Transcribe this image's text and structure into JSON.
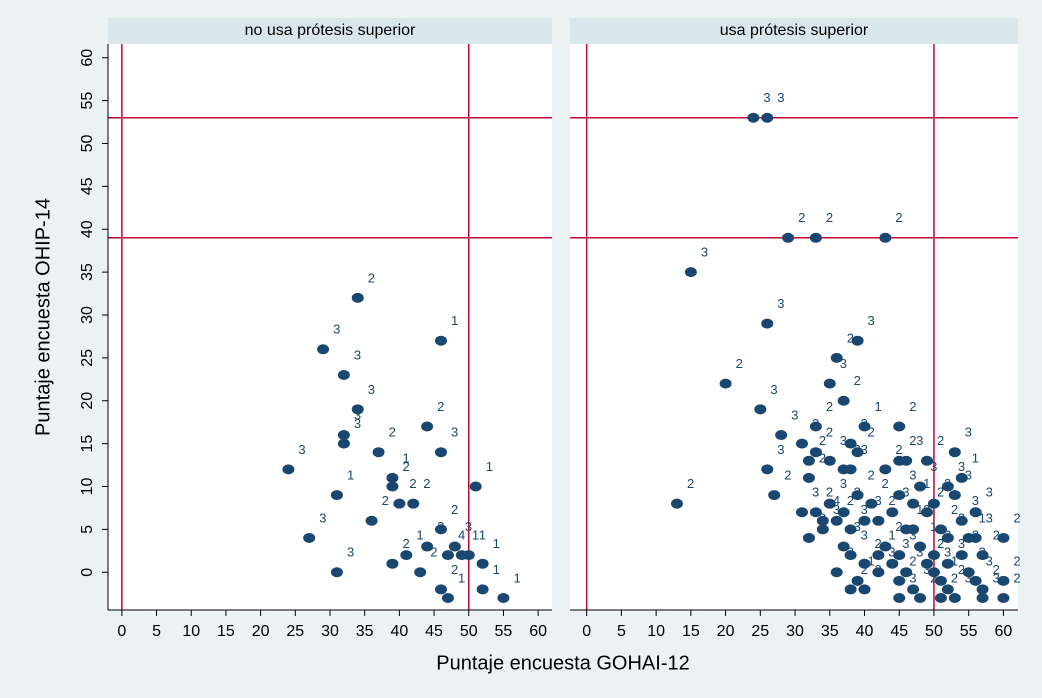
{
  "chart_data": [
    {
      "type": "scatter",
      "title": "no usa prótesis superior",
      "xlabel": "Puntaje encuesta GOHAI-12",
      "ylabel": "Puntaje encuesta OHIP-14",
      "color": "#1a476f",
      "ref_color": "#c10534",
      "xlim": [
        -2,
        62
      ],
      "ylim": [
        -4.4,
        61.6
      ],
      "xticks": [
        0,
        5,
        10,
        15,
        20,
        25,
        30,
        35,
        40,
        45,
        50,
        55,
        60
      ],
      "yticks": [
        0,
        5,
        10,
        15,
        20,
        25,
        30,
        35,
        40,
        45,
        50,
        55,
        60
      ],
      "hlines": [
        53,
        39
      ],
      "vlines": [
        0,
        50
      ],
      "x": [
        34,
        29,
        46,
        32,
        34,
        32,
        32,
        44,
        46,
        37,
        24,
        39,
        39,
        31,
        51,
        40,
        42,
        36,
        46,
        27,
        48,
        44,
        41,
        39,
        47,
        49,
        50,
        52,
        43,
        31,
        46,
        47,
        52,
        55
      ],
      "y": [
        32,
        26,
        27,
        23,
        19,
        16,
        15,
        17,
        14,
        14,
        12,
        11,
        10,
        9,
        10,
        8,
        8,
        6,
        5,
        4,
        3,
        3,
        2,
        1,
        2,
        2,
        2,
        1,
        0,
        0,
        -2,
        -3,
        -2,
        -3
      ],
      "marker_labels": [
        "2",
        "3",
        "1",
        "3",
        "3",
        "3",
        "3",
        "2",
        "3",
        "2",
        "3",
        "1",
        "2",
        "1",
        "1",
        "2",
        "2",
        "2",
        "2",
        "3",
        "3",
        "2",
        "1",
        "2",
        "4",
        "1",
        "1",
        "1",
        "2",
        "3",
        "2",
        "1",
        "1",
        "1"
      ]
    },
    {
      "type": "scatter",
      "title": "usa prótesis superior",
      "color": "#1a476f",
      "ref_color": "#c10534",
      "xlim": [
        -2.4,
        62.1
      ],
      "ylim": [
        -4.4,
        61.6
      ],
      "xticks": [
        0,
        5,
        10,
        15,
        20,
        25,
        30,
        35,
        40,
        45,
        50,
        55,
        60
      ],
      "hlines": [
        53,
        39
      ],
      "vlines": [
        0,
        50
      ],
      "x": [
        24,
        26,
        29,
        33,
        43,
        15,
        26,
        39,
        36,
        20,
        35,
        37,
        25,
        40,
        45,
        28,
        33,
        31,
        33,
        35,
        38,
        39,
        26,
        32,
        37,
        38,
        43,
        45,
        46,
        49,
        53,
        32,
        54,
        52,
        27,
        45,
        48,
        13,
        35,
        39,
        41,
        47,
        50,
        53,
        31,
        33,
        37,
        44,
        49,
        54,
        56,
        34,
        36,
        40,
        42,
        46,
        34,
        38,
        47,
        51,
        55,
        56,
        60,
        32,
        37,
        43,
        48,
        52,
        38,
        42,
        45,
        50,
        54,
        57,
        40,
        44,
        49,
        52,
        36,
        42,
        46,
        50,
        55,
        39,
        45,
        51,
        56,
        38,
        40,
        47,
        52,
        57,
        60,
        45,
        48,
        51,
        53,
        57,
        60
      ],
      "y": [
        53,
        53,
        39,
        39,
        39,
        35,
        29,
        27,
        25,
        22,
        22,
        20,
        19,
        17,
        17,
        16,
        17,
        15,
        14,
        13,
        15,
        14,
        12,
        13,
        12,
        12,
        12,
        13,
        13,
        13,
        14,
        11,
        11,
        10,
        9,
        9,
        10,
        8,
        8,
        9,
        8,
        8,
        8,
        9,
        7,
        7,
        7,
        7,
        7,
        6,
        7,
        6,
        6,
        6,
        6,
        5,
        5,
        5,
        5,
        5,
        4,
        4,
        4,
        4,
        3,
        3,
        3,
        4,
        2,
        2,
        2,
        2,
        2,
        2,
        1,
        1,
        1,
        1,
        0,
        0,
        0,
        0,
        0,
        -1,
        -1,
        -1,
        -1,
        -2,
        -2,
        -2,
        -2,
        -2,
        -1,
        -3,
        -3,
        -3,
        -3,
        -3,
        -3
      ],
      "marker_labels": [
        "3",
        "3",
        "2",
        "2",
        "2",
        "3",
        "3",
        "3",
        "2",
        "2",
        "3",
        "2",
        "3",
        "1",
        "2",
        "3",
        "2",
        "3",
        "2",
        "3",
        "3",
        "2",
        "3",
        "2",
        "3",
        "3",
        "2",
        "2",
        "3",
        "2",
        "3",
        "2",
        "1",
        "3",
        "2",
        "3",
        "3",
        "2",
        "3",
        "2",
        "2",
        "1",
        "2",
        "3",
        "3",
        "2",
        "3",
        "3",
        "2",
        "3",
        "3",
        "4",
        "2",
        "3",
        "2",
        "1",
        "3",
        "3",
        "2",
        "2",
        "1",
        "3",
        "2",
        "3",
        "3",
        "2",
        "1",
        "2",
        "3",
        "1",
        "3",
        "2",
        "2",
        "2",
        "2",
        "3",
        "2",
        "3",
        "2",
        "3",
        "3",
        "3",
        "3",
        "1",
        "2",
        "1",
        "3",
        "2",
        "2",
        "3",
        "2",
        "2",
        "2",
        "3",
        "2",
        "2",
        "3",
        "3",
        "2"
      ]
    }
  ]
}
